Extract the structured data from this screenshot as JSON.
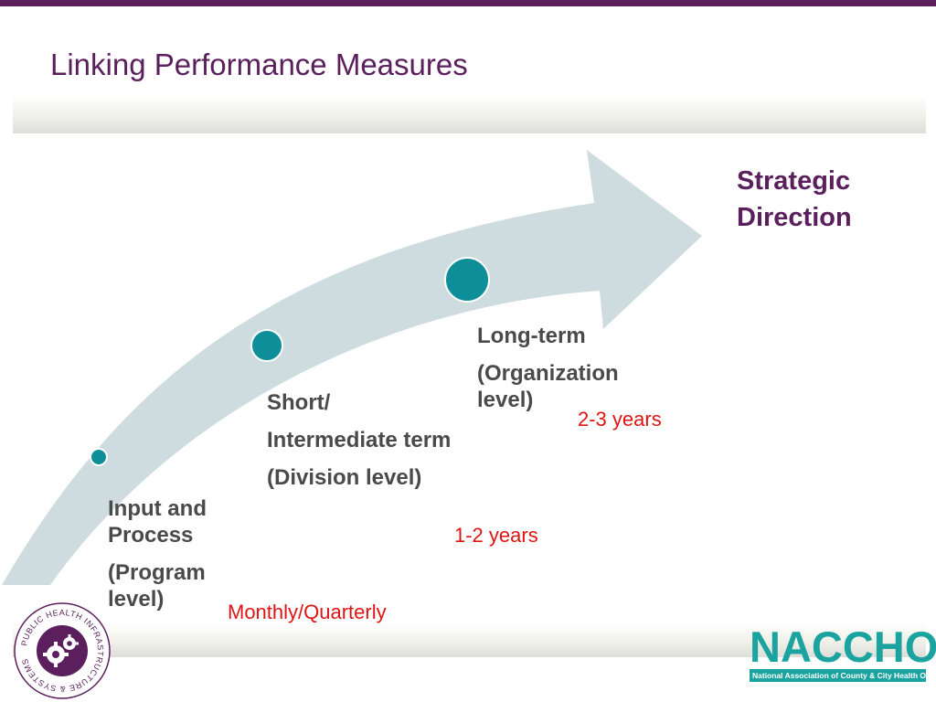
{
  "slide": {
    "title": "Linking Performance Measures"
  },
  "goal": {
    "line1": "Strategic",
    "line2": "Direction"
  },
  "stages": [
    {
      "lines": [
        "Input and Process",
        "(Program level)"
      ],
      "duration": "Monthly/Quarterly"
    },
    {
      "lines": [
        "Short/",
        "Intermediate term",
        "(Division level)"
      ],
      "duration": "1-2 years"
    },
    {
      "lines": [
        "Long-term",
        "(Organization level)"
      ],
      "duration": "2-3 years"
    }
  ],
  "seal_logo": {
    "ring_text": "PUBLIC HEALTH INFRASTRUCTURE & SYSTEMS",
    "icon": "gears-icon"
  },
  "naccho_logo": {
    "wordmark": "NACCHO",
    "tagline": "National Association of County & City Health Officials"
  },
  "colors": {
    "title": "#5a1f5c",
    "arrow": "#cfdcdf",
    "dots": "#0e8e98",
    "duration": "#dd1515",
    "naccho": "#1aa39f"
  }
}
